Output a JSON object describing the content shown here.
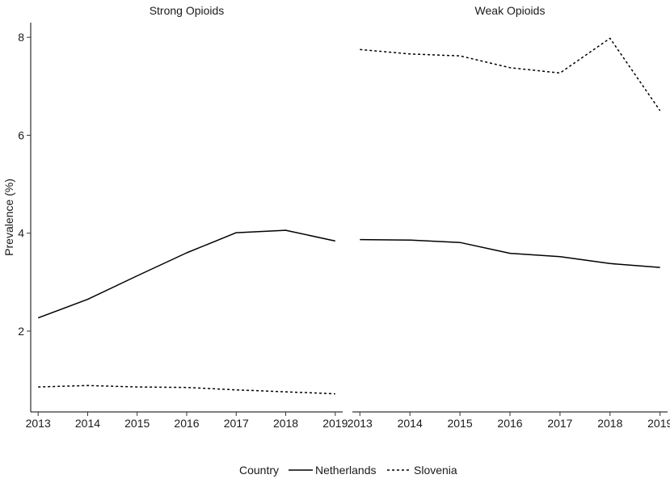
{
  "chart_data": {
    "type": "line",
    "ylabel": "Prevalence (%)",
    "xlabel": "",
    "ylim": [
      0.35,
      8.3
    ],
    "yticks": [
      2,
      4,
      6,
      8
    ],
    "xlim": [
      2012.85,
      2019.15
    ],
    "xticks": [
      2013,
      2014,
      2015,
      2016,
      2017,
      2018,
      2019
    ],
    "legend": {
      "title": "Country",
      "position": "bottom",
      "entries": [
        {
          "name": "Netherlands",
          "linetype": "solid"
        },
        {
          "name": "Slovenia",
          "linetype": "dashed"
        }
      ]
    },
    "panels": [
      {
        "title": "Strong Opioids",
        "x": [
          2013,
          2014,
          2015,
          2016,
          2017,
          2018,
          2019
        ],
        "series": [
          {
            "name": "Netherlands",
            "values": [
              2.27,
              2.65,
              3.13,
              3.6,
              4.01,
              4.06,
              3.84
            ]
          },
          {
            "name": "Slovenia",
            "values": [
              0.86,
              0.89,
              0.86,
              0.85,
              0.8,
              0.76,
              0.72
            ]
          }
        ]
      },
      {
        "title": "Weak Opioids",
        "x": [
          2013,
          2014,
          2015,
          2016,
          2017,
          2018,
          2019
        ],
        "series": [
          {
            "name": "Netherlands",
            "values": [
              3.87,
              3.86,
              3.81,
              3.59,
              3.52,
              3.38,
              3.3
            ]
          },
          {
            "name": "Slovenia",
            "values": [
              7.75,
              7.66,
              7.62,
              7.38,
              7.27,
              7.98,
              6.5
            ]
          }
        ]
      }
    ]
  }
}
